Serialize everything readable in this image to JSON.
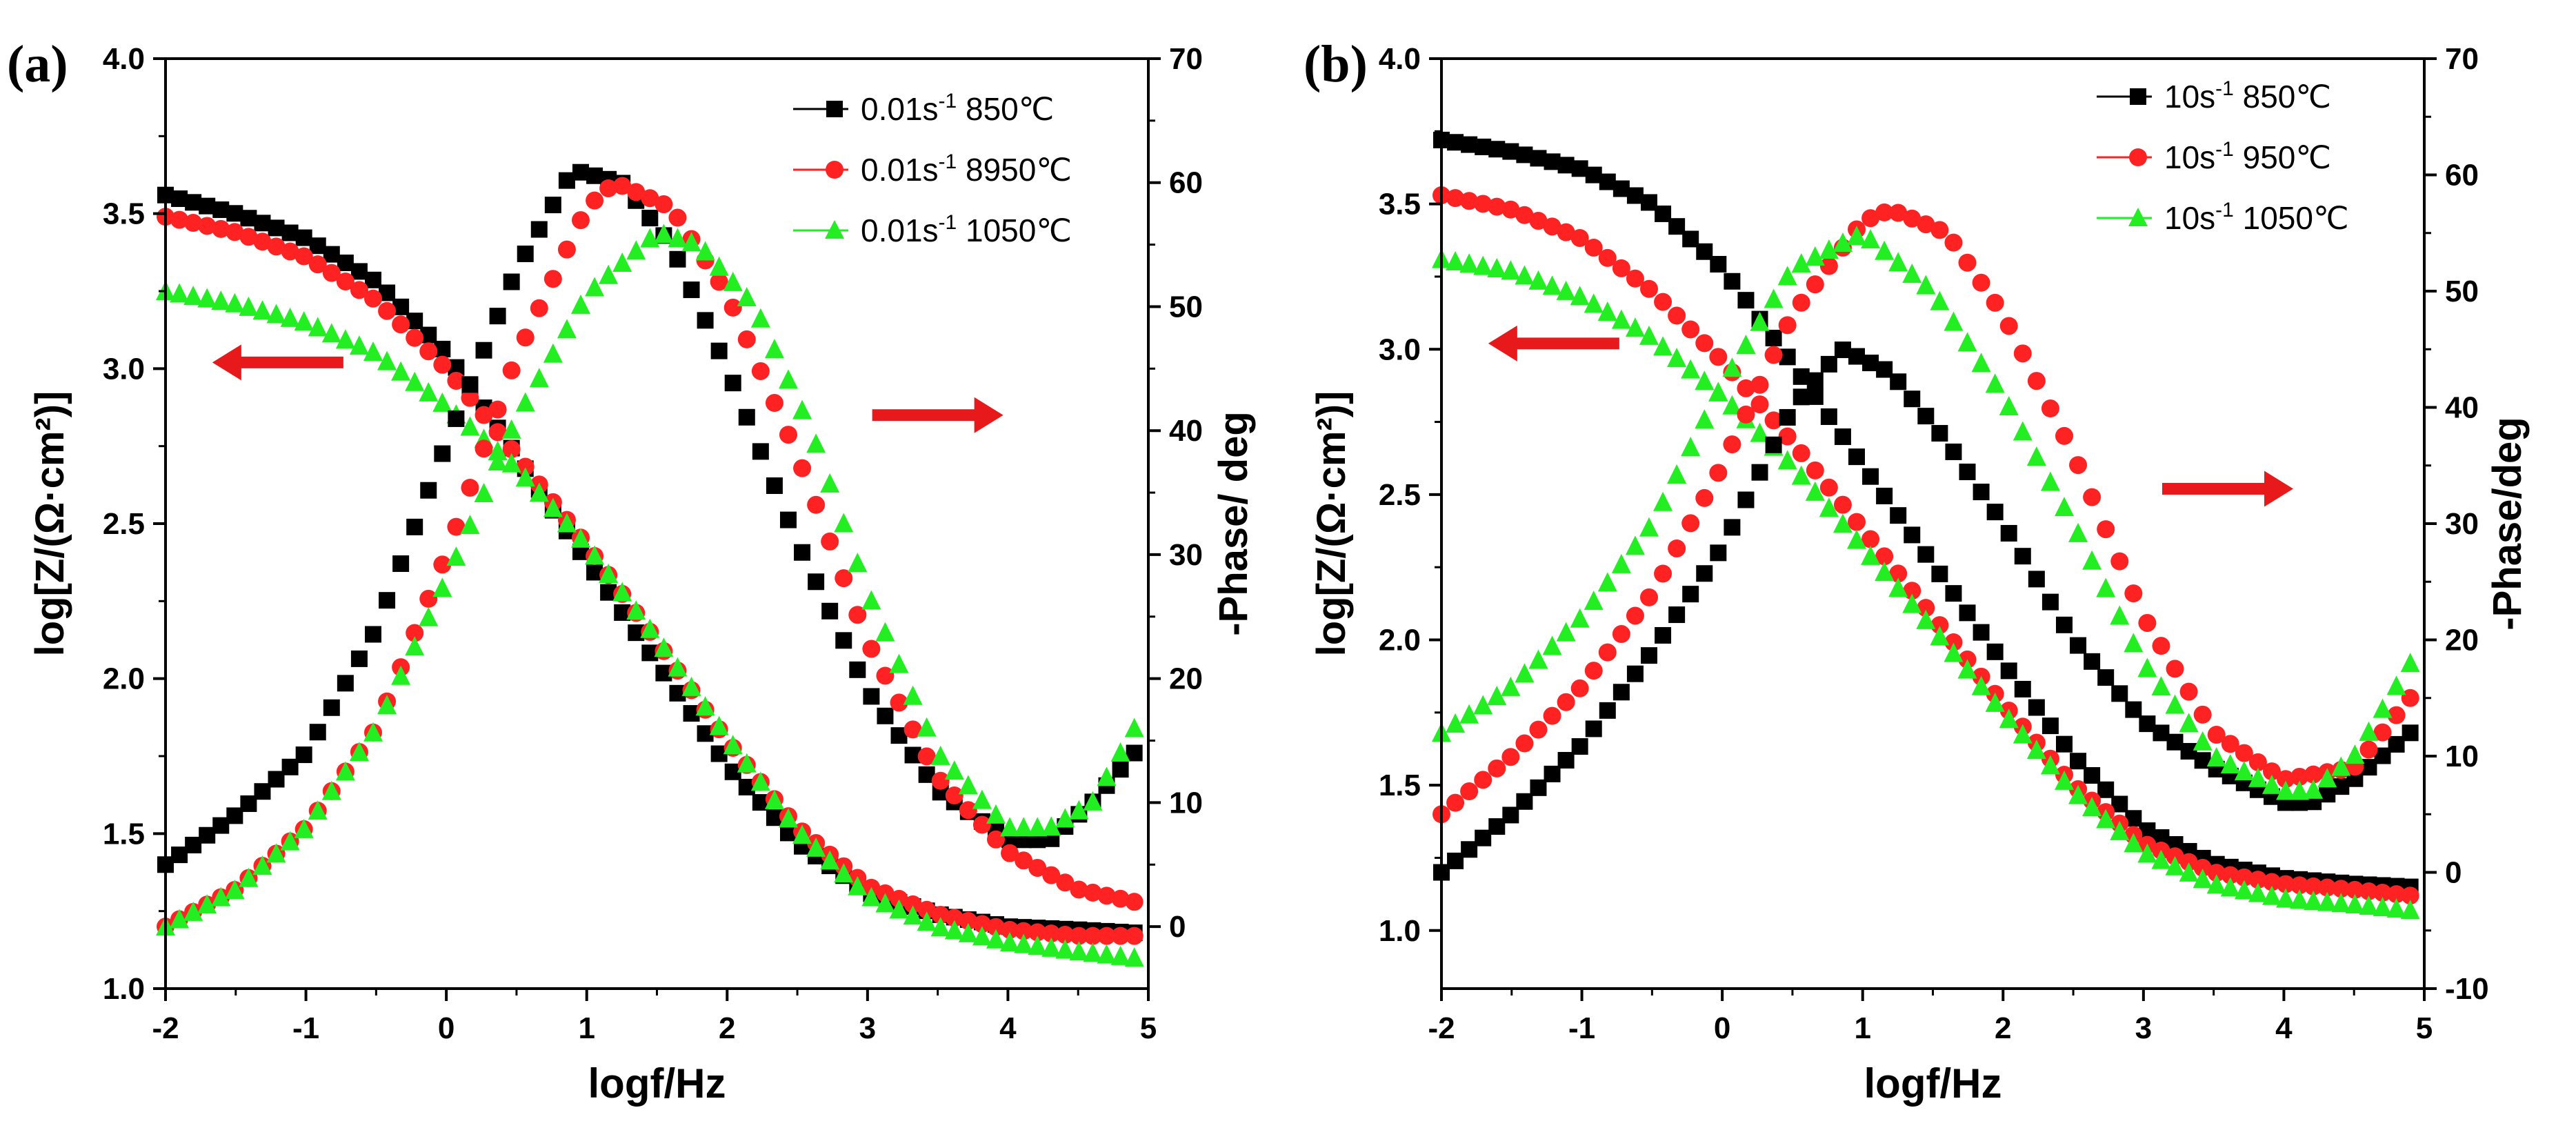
{
  "chart_data": [
    {
      "type": "scatter",
      "panel_label": "(a)",
      "xlabel": "logf/Hz",
      "ylabel_left": "log[Z/(Ω·cm²)]",
      "ylabel_right": "-Phase/ deg",
      "xlim": [
        -2,
        5
      ],
      "ylim_left": [
        1.0,
        4.0
      ],
      "ylim_right": [
        -5,
        70
      ],
      "xticks": [
        "-2",
        "-1",
        "0",
        "1",
        "2",
        "3",
        "4",
        "5"
      ],
      "yticks_left": [
        "1.0",
        "1.5",
        "2.0",
        "2.5",
        "3.0",
        "3.5",
        "4.0"
      ],
      "yticks_right": [
        "0",
        "10",
        "20",
        "30",
        "40",
        "50",
        "60",
        "70"
      ],
      "legend_position": "top-right",
      "legend": [
        {
          "label": "0.01s-1 850℃",
          "base": "0.01s",
          "sup": "-1",
          "temp": " 850℃",
          "color": "#000000",
          "marker": "square"
        },
        {
          "label": "0.01s-1 8950℃",
          "base": "0.01s",
          "sup": "-1",
          "temp": " 8950℃",
          "color": "#ff2222",
          "marker": "circle"
        },
        {
          "label": "0.01s-1 1050℃",
          "base": "0.01s",
          "sup": "-1",
          "temp": " 1050℃",
          "color": "#22ee22",
          "marker": "triangle"
        }
      ],
      "annotations": [
        {
          "text": "arrow pointing left to log|Z| axis",
          "direction": "left",
          "at_x": -1.2,
          "at_y": 3.02
        },
        {
          "text": "arrow pointing right to phase axis",
          "direction": "right",
          "at_x": 3.5,
          "at_y": 2.85
        }
      ],
      "series": [
        {
          "name": "0.01s-1 850℃ |Z|",
          "axis": "left",
          "legend_index": 0,
          "color": "#000000",
          "marker": "square",
          "x": [
            -2,
            -1.5,
            -1,
            -0.5,
            0,
            0.5,
            1,
            1.5,
            2,
            2.5,
            3,
            3.5,
            4,
            4.5,
            4.9
          ],
          "y": [
            3.56,
            3.5,
            3.42,
            3.28,
            3.05,
            2.72,
            2.38,
            2.05,
            1.72,
            1.47,
            1.31,
            1.24,
            1.2,
            1.19,
            1.18
          ]
        },
        {
          "name": "0.01s-1 8950℃ |Z|",
          "axis": "left",
          "legend_index": 1,
          "color": "#ff2222",
          "marker": "circle",
          "x": [
            -2,
            -1.5,
            -1,
            -0.5,
            0,
            0.5,
            1,
            1.5,
            2,
            2.5,
            3,
            3.5,
            4,
            4.5,
            4.9
          ],
          "y": [
            3.49,
            3.44,
            3.36,
            3.22,
            3.0,
            2.72,
            2.43,
            2.12,
            1.8,
            1.52,
            1.33,
            1.24,
            1.19,
            1.17,
            1.17
          ]
        },
        {
          "name": "0.01s-1 1050℃ |Z|",
          "axis": "left",
          "legend_index": 2,
          "color": "#22ee22",
          "marker": "triangle",
          "x": [
            -2,
            -1.5,
            -1,
            -0.5,
            0,
            0.5,
            1,
            1.5,
            2,
            2.5,
            3,
            3.5,
            4,
            4.5,
            4.9
          ],
          "y": [
            3.25,
            3.21,
            3.15,
            3.05,
            2.88,
            2.68,
            2.43,
            2.13,
            1.81,
            1.51,
            1.3,
            1.2,
            1.15,
            1.12,
            1.1
          ]
        },
        {
          "name": "0.01s-1 850℃ phase",
          "axis": "right",
          "legend_index": 0,
          "color": "#000000",
          "marker": "square",
          "x": [
            -2,
            -1.5,
            -1,
            -0.5,
            0,
            0.5,
            0.9,
            1.25,
            1.6,
            2,
            2.5,
            3,
            3.5,
            4,
            4.3,
            4.6,
            4.9
          ],
          "y": [
            5,
            9,
            14,
            24,
            39,
            53,
            61,
            60,
            55,
            45,
            31,
            19,
            11,
            7,
            7,
            10,
            14
          ]
        },
        {
          "name": "0.01s-1 8950℃ phase",
          "axis": "right",
          "legend_index": 1,
          "color": "#ff2222",
          "marker": "circle",
          "x": [
            -2,
            -1.5,
            -1,
            -0.5,
            0,
            0.5,
            1,
            1.2,
            1.6,
            2,
            2.5,
            3,
            3.5,
            4,
            4.5,
            4.9
          ],
          "y": [
            0,
            3,
            8,
            16,
            30,
            46,
            58,
            60,
            58,
            51,
            38,
            23,
            12,
            6,
            3,
            2
          ]
        },
        {
          "name": "0.01s-1 1050℃ phase",
          "axis": "right",
          "legend_index": 2,
          "color": "#22ee22",
          "marker": "triangle",
          "x": [
            -2,
            -1.5,
            -1,
            -0.5,
            0,
            0.5,
            1,
            1.5,
            1.8,
            2.2,
            2.6,
            3,
            3.5,
            4,
            4.3,
            4.6,
            4.9
          ],
          "y": [
            0,
            3,
            8,
            16,
            28,
            41,
            51,
            56,
            55,
            50,
            40,
            27,
            14,
            8,
            8,
            10,
            16
          ]
        }
      ]
    },
    {
      "type": "scatter",
      "panel_label": "(b)",
      "xlabel": "logf/Hz",
      "ylabel_left": "log[Z/(Ω·cm²)]",
      "ylabel_right": "-Phase/deg",
      "xlim": [
        -2,
        5
      ],
      "ylim_left": [
        0.8,
        4.0
      ],
      "ylim_right": [
        -10,
        70
      ],
      "xticks": [
        "-2",
        "-1",
        "0",
        "1",
        "2",
        "3",
        "4",
        "5"
      ],
      "yticks_left": [
        "1.0",
        "1.5",
        "2.0",
        "2.5",
        "3.0",
        "3.5",
        "4.0"
      ],
      "yticks_right": [
        "-10",
        "0",
        "10",
        "20",
        "30",
        "40",
        "50",
        "60",
        "70"
      ],
      "legend_position": "top-right",
      "legend": [
        {
          "label": "10s-1 850℃",
          "base": "10s",
          "sup": "-1",
          "temp": " 850℃",
          "color": "#000000",
          "marker": "square"
        },
        {
          "label": "10s-1 950℃",
          "base": "10s",
          "sup": "-1",
          "temp": " 950℃",
          "color": "#ff2222",
          "marker": "circle"
        },
        {
          "label": "10s-1 1050℃",
          "base": "10s",
          "sup": "-1",
          "temp": " 1050℃",
          "color": "#22ee22",
          "marker": "triangle"
        }
      ],
      "annotations": [
        {
          "text": "arrow pointing left to log|Z| axis",
          "direction": "left",
          "at_x": -1.2,
          "at_y": 3.02
        },
        {
          "text": "arrow pointing right to phase axis",
          "direction": "right",
          "at_x": 3.6,
          "at_y": 2.52
        }
      ],
      "series": [
        {
          "name": "10s-1 850℃ |Z|",
          "axis": "left",
          "legend_index": 0,
          "color": "#000000",
          "marker": "square",
          "x": [
            -2,
            -1.5,
            -1,
            -0.5,
            0,
            0.5,
            1,
            1.5,
            2,
            2.5,
            3,
            3.5,
            4,
            4.5,
            4.9
          ],
          "y": [
            3.72,
            3.68,
            3.62,
            3.5,
            3.28,
            2.95,
            2.6,
            2.26,
            1.92,
            1.6,
            1.35,
            1.23,
            1.18,
            1.16,
            1.15
          ]
        },
        {
          "name": "10s-1 950℃ |Z|",
          "axis": "left",
          "legend_index": 1,
          "color": "#ff2222",
          "marker": "circle",
          "x": [
            -2,
            -1.5,
            -1,
            -0.5,
            0,
            0.5,
            1,
            1.5,
            2,
            2.5,
            3,
            3.5,
            4,
            4.5,
            4.9
          ],
          "y": [
            3.53,
            3.48,
            3.38,
            3.2,
            2.96,
            2.68,
            2.38,
            2.08,
            1.78,
            1.5,
            1.3,
            1.2,
            1.16,
            1.14,
            1.12
          ]
        },
        {
          "name": "10s-1 1050℃ |Z|",
          "axis": "left",
          "legend_index": 2,
          "color": "#22ee22",
          "marker": "triangle",
          "x": [
            -2,
            -1.5,
            -1,
            -0.5,
            0,
            0.5,
            1,
            1.5,
            2,
            2.5,
            3,
            3.5,
            4,
            4.5,
            4.9
          ],
          "y": [
            3.31,
            3.27,
            3.18,
            3.04,
            2.84,
            2.6,
            2.32,
            2.04,
            1.75,
            1.48,
            1.27,
            1.16,
            1.11,
            1.09,
            1.07
          ]
        },
        {
          "name": "10s-1 850℃ phase",
          "axis": "right",
          "legend_index": 0,
          "color": "#000000",
          "marker": "square",
          "x": [
            -2,
            -1.5,
            -1,
            -0.5,
            0,
            0.5,
            0.85,
            1.2,
            1.6,
            2,
            2.5,
            3,
            3.5,
            4,
            4.2,
            4.5,
            4.9
          ],
          "y": [
            0,
            5,
            11,
            19,
            28,
            40,
            45,
            43,
            37,
            30,
            20,
            13,
            9,
            6,
            6,
            8,
            12
          ]
        },
        {
          "name": "10s-1 950℃ phase",
          "axis": "right",
          "legend_index": 1,
          "color": "#ff2222",
          "marker": "circle",
          "x": [
            -2,
            -1.5,
            -1,
            -0.5,
            0,
            0.5,
            1,
            1.2,
            1.6,
            2,
            2.5,
            3,
            3.5,
            4,
            4.5,
            4.9
          ],
          "y": [
            5,
            10,
            16,
            24,
            35,
            48,
            56,
            57,
            55,
            48,
            36,
            22,
            12,
            8,
            9,
            15
          ]
        },
        {
          "name": "10s-1 1050℃ phase",
          "axis": "right",
          "legend_index": 2,
          "color": "#22ee22",
          "marker": "triangle",
          "x": [
            -2,
            -1.5,
            -1,
            -0.5,
            0,
            0.5,
            1,
            1.5,
            2,
            2.5,
            3,
            3.5,
            4,
            4.2,
            4.5,
            4.9
          ],
          "y": [
            12,
            16,
            22,
            30,
            42,
            52,
            55,
            50,
            41,
            30,
            18,
            10,
            7,
            7,
            10,
            18
          ]
        }
      ]
    }
  ]
}
